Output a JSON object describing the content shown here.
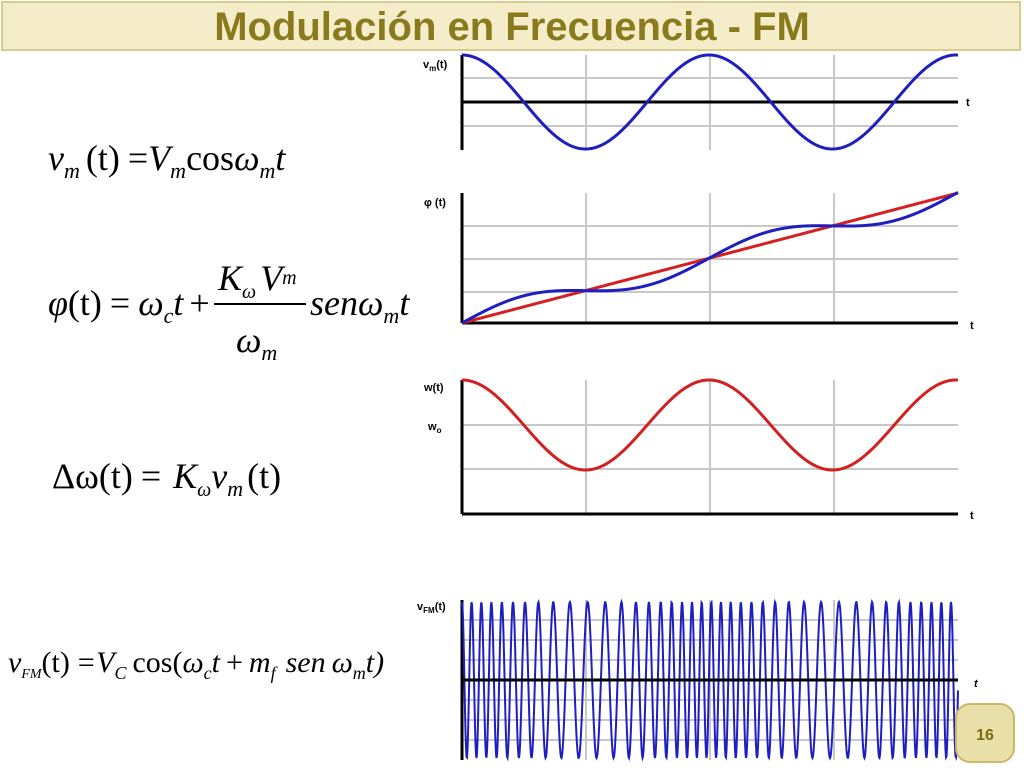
{
  "title": "Modulación en Frecuencia - FM",
  "equations": [
    [
      "v",
      "m",
      "(t)",
      "=",
      "V",
      "m",
      "cos",
      "ω",
      "m",
      "t"
    ],
    [
      "φ",
      "(t)",
      "=",
      "ω",
      "c",
      "t",
      "+",
      "K",
      "ω",
      "V",
      "m",
      "ω",
      "m",
      "sen",
      "ω",
      "m",
      "t"
    ],
    [
      "Δω",
      "(t)",
      "=",
      "K",
      "ω",
      "v",
      "m",
      "(t)"
    ],
    [
      "v",
      "FM",
      "(t)",
      "=V",
      "C",
      "cos(",
      "ω",
      "c",
      "t",
      "+",
      "m",
      "f",
      "sen",
      "ω",
      "m",
      "t)"
    ]
  ],
  "graph_labels": {
    "vm": [
      "v",
      "m",
      "(t)"
    ],
    "t": "t",
    "phi": "φ (t)",
    "w": "w(t)",
    "wo": [
      "w",
      "o"
    ],
    "vfm": [
      "v",
      "FM",
      "(t)"
    ]
  },
  "page_number": "16"
}
